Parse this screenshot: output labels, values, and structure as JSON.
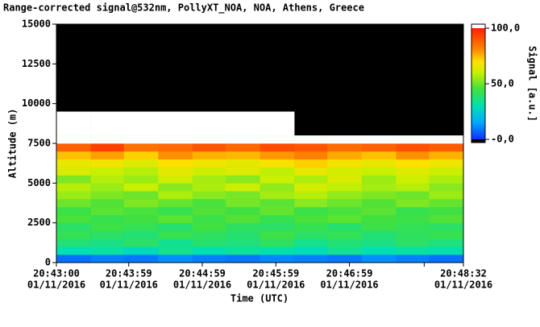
{
  "chart_data": {
    "type": "heatmap",
    "title": "Range-corrected signal@532nm, PollyXT_NOA, NOA, Athens, Greece",
    "xlabel": "Time (UTC)",
    "ylabel": "Altitude (m)",
    "colorbar_label": "Signal [a.u.]",
    "xlim": [
      "20:43:00",
      "20:48:32"
    ],
    "xticks": [
      {
        "value": "20:43:00",
        "label": [
          "20:43:00",
          "01/11/2016"
        ]
      },
      {
        "value": "20:43:59",
        "label": [
          "20:43:59",
          "01/11/2016"
        ]
      },
      {
        "value": "20:44:59",
        "label": [
          "20:44:59",
          "01/11/2016"
        ]
      },
      {
        "value": "20:45:59",
        "label": [
          "20:45:59",
          "01/11/2016"
        ]
      },
      {
        "value": "20:46:59",
        "label": [
          "20:46:59",
          "01/11/2016"
        ]
      },
      {
        "value": "20:48:00",
        "label": null
      },
      {
        "value": "20:48:32",
        "label": [
          "20:48:32",
          "01/11/2016"
        ]
      }
    ],
    "ylim": [
      0,
      15000
    ],
    "yticks": [
      0,
      2500,
      5000,
      7500,
      10000,
      12500,
      15000
    ],
    "clim": [
      0,
      100
    ],
    "cticks": [
      {
        "value": 0,
        "label": "-0,0"
      },
      {
        "value": 50,
        "label": "50,0"
      },
      {
        "value": 100,
        "label": "100,0"
      }
    ],
    "colormap": [
      {
        "value": 0,
        "color": "#1030ff"
      },
      {
        "value": 15,
        "color": "#00a8ff"
      },
      {
        "value": 30,
        "color": "#00e0b0"
      },
      {
        "value": 45,
        "color": "#40e040"
      },
      {
        "value": 60,
        "color": "#c8f000"
      },
      {
        "value": 70,
        "color": "#ffe000"
      },
      {
        "value": 82,
        "color": "#ff8000"
      },
      {
        "value": 100,
        "color": "#ff2000"
      }
    ],
    "over_color": "#ffffff",
    "missing_color": "#000000",
    "x_edges": [
      "20:43:00",
      "20:43:28",
      "20:43:55",
      "20:44:23",
      "20:44:51",
      "20:45:18",
      "20:45:46",
      "20:46:14",
      "20:46:41",
      "20:47:09",
      "20:47:37",
      "20:48:04",
      "20:48:32"
    ],
    "y_edges": [
      0,
      500,
      1000,
      1500,
      2000,
      2500,
      3000,
      3500,
      4000,
      4500,
      5000,
      5500,
      6000,
      6500,
      7000,
      7500,
      8000,
      8500,
      9000,
      9500
    ],
    "values": [
      [
        8,
        10,
        9,
        12,
        10,
        9,
        11,
        10,
        9,
        12,
        10,
        8
      ],
      [
        30,
        32,
        28,
        35,
        30,
        33,
        31,
        29,
        34,
        30,
        32,
        31
      ],
      [
        38,
        36,
        40,
        34,
        39,
        37,
        41,
        35,
        38,
        36,
        40,
        37
      ],
      [
        42,
        40,
        38,
        43,
        41,
        39,
        44,
        40,
        42,
        38,
        41,
        43
      ],
      [
        40,
        44,
        42,
        39,
        45,
        41,
        40,
        43,
        39,
        44,
        42,
        40
      ],
      [
        46,
        43,
        45,
        48,
        44,
        47,
        43,
        46,
        48,
        45,
        44,
        47
      ],
      [
        44,
        48,
        46,
        43,
        47,
        45,
        49,
        44,
        46,
        48,
        43,
        45
      ],
      [
        50,
        47,
        52,
        49,
        46,
        51,
        48,
        53,
        50,
        47,
        52,
        49
      ],
      [
        55,
        52,
        50,
        57,
        53,
        51,
        56,
        58,
        54,
        52,
        50,
        55
      ],
      [
        58,
        55,
        60,
        53,
        57,
        61,
        54,
        62,
        59,
        56,
        58,
        53
      ],
      [
        52,
        58,
        55,
        62,
        56,
        53,
        60,
        57,
        63,
        55,
        61,
        57
      ],
      [
        63,
        60,
        58,
        65,
        61,
        64,
        59,
        66,
        62,
        60,
        64,
        61
      ],
      [
        66,
        68,
        64,
        70,
        67,
        65,
        69,
        72,
        68,
        66,
        70,
        67
      ],
      [
        74,
        78,
        72,
        80,
        76,
        75,
        79,
        82,
        77,
        74,
        80,
        76
      ],
      [
        88,
        94,
        85,
        86,
        90,
        87,
        92,
        90,
        86,
        88,
        91,
        89
      ],
      [
        110,
        105,
        110,
        108,
        110,
        106,
        110,
        110,
        110,
        110,
        110,
        110
      ],
      [
        110,
        110,
        110,
        110,
        110,
        110,
        110,
        null,
        null,
        null,
        null,
        null
      ],
      [
        110,
        110,
        110,
        110,
        110,
        110,
        110,
        null,
        null,
        null,
        null,
        null
      ],
      [
        110,
        110,
        110,
        110,
        110,
        110,
        110,
        null,
        null,
        null,
        null,
        null
      ]
    ]
  }
}
